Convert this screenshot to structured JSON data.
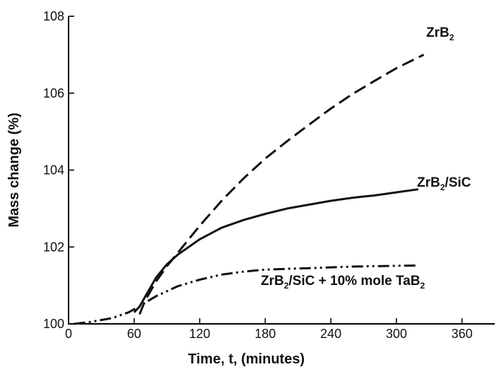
{
  "chart_data": {
    "type": "line",
    "title": "",
    "xlabel": "Time, t, (minutes)",
    "ylabel": "Mass change (%)",
    "xlim": [
      0,
      390
    ],
    "ylim": [
      100,
      108
    ],
    "x_ticks": [
      0,
      60,
      120,
      180,
      240,
      300,
      360
    ],
    "y_ticks": [
      100,
      102,
      104,
      106,
      108
    ],
    "grid": false,
    "legend": "inline-labels",
    "series": [
      {
        "name": "ZrB2",
        "label_main": "ZrB",
        "label_sub": "2",
        "label_suffix": "",
        "style": "dashed",
        "x": [
          65,
          70,
          80,
          90,
          100,
          120,
          140,
          160,
          180,
          200,
          220,
          240,
          260,
          280,
          300,
          325
        ],
        "y": [
          100.25,
          100.6,
          101.1,
          101.5,
          101.85,
          102.55,
          103.2,
          103.78,
          104.3,
          104.75,
          105.18,
          105.6,
          105.98,
          106.32,
          106.65,
          107.0
        ]
      },
      {
        "name": "ZrB2/SiC",
        "label_main": "ZrB",
        "label_sub": "2",
        "label_suffix": "/SiC",
        "style": "solid",
        "x": [
          60,
          65,
          70,
          80,
          90,
          100,
          120,
          140,
          160,
          180,
          200,
          220,
          240,
          260,
          280,
          300,
          320
        ],
        "y": [
          100.3,
          100.45,
          100.7,
          101.2,
          101.55,
          101.8,
          102.2,
          102.5,
          102.7,
          102.86,
          103.0,
          103.1,
          103.2,
          103.28,
          103.34,
          103.42,
          103.5
        ]
      },
      {
        "name": "ZrB2/SiC + 10% mole TaB2",
        "label_main": "ZrB",
        "label_sub": "2",
        "label_suffix": "/SiC + 10% mole TaB",
        "label_sub2": "2",
        "style": "dash-dot-dot",
        "x": [
          5,
          20,
          40,
          55,
          60,
          65,
          70,
          80,
          100,
          120,
          140,
          160,
          180,
          200,
          220,
          240,
          260,
          280,
          300,
          320
        ],
        "y": [
          100.0,
          100.05,
          100.15,
          100.3,
          100.38,
          100.45,
          100.55,
          100.72,
          100.98,
          101.15,
          101.28,
          101.36,
          101.41,
          101.43,
          101.45,
          101.47,
          101.49,
          101.5,
          101.51,
          101.52
        ]
      }
    ]
  }
}
